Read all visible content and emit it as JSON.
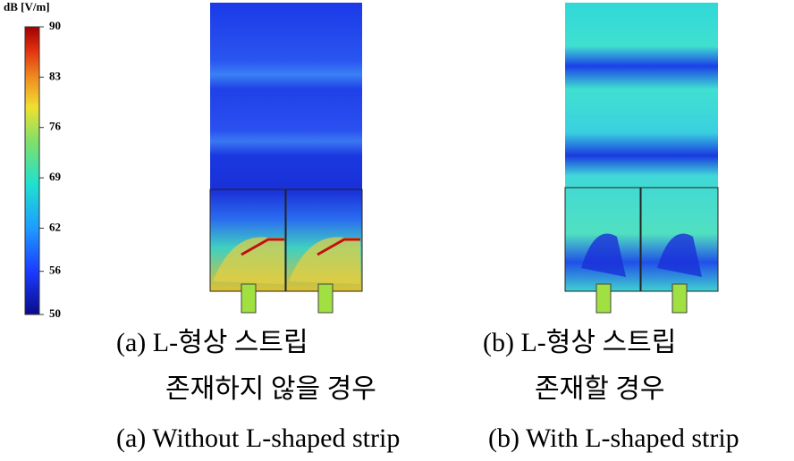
{
  "colorbar": {
    "title": "dB [V/m]",
    "ticks": [
      90,
      83,
      76,
      69,
      62,
      56,
      50
    ]
  },
  "panels": [
    {
      "caption_ko": [
        "(a) L-형상 스트립",
        "존재하지 않을 경우"
      ],
      "caption_en": "(a) Without L-shaped strip"
    },
    {
      "caption_ko": [
        "(b) L-형상 스트립",
        "존재할 경우"
      ],
      "caption_en": "(b) With L-shaped strip"
    }
  ]
}
